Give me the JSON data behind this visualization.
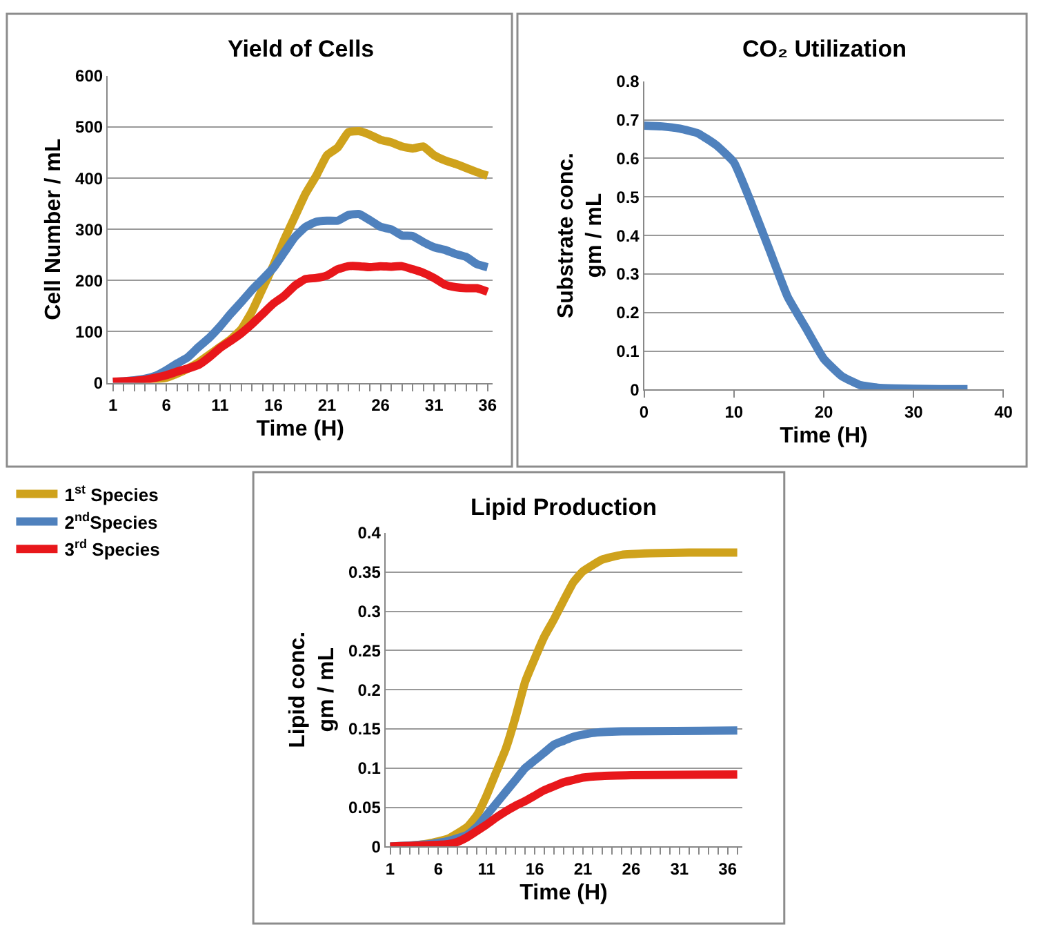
{
  "chart_data": [
    {
      "type": "line",
      "title": "Yield of Cells",
      "xlabel": "Time (H)",
      "ylabel": "Cell Number / mL",
      "x": [
        1,
        2,
        3,
        4,
        5,
        6,
        7,
        8,
        9,
        10,
        11,
        12,
        13,
        14,
        15,
        16,
        17,
        18,
        19,
        20,
        21,
        22,
        23,
        24,
        25,
        26,
        27,
        28,
        29,
        30,
        31,
        32,
        33,
        34,
        35,
        36
      ],
      "series": [
        {
          "color": "#cfa21c",
          "values": [
            null,
            null,
            4,
            5,
            7,
            10,
            18,
            28,
            40,
            55,
            70,
            85,
            105,
            140,
            185,
            230,
            280,
            325,
            370,
            405,
            445,
            460,
            490,
            492,
            485,
            475,
            470,
            462,
            458,
            462,
            445,
            435,
            428,
            420,
            412,
            405
          ]
        },
        {
          "color": "#4f81bd",
          "values": [
            2,
            3,
            5,
            8,
            14,
            25,
            38,
            50,
            70,
            88,
            110,
            135,
            158,
            182,
            203,
            225,
            255,
            285,
            305,
            315,
            317,
            317,
            328,
            330,
            318,
            305,
            300,
            288,
            287,
            275,
            265,
            260,
            252,
            246,
            232,
            226
          ]
        },
        {
          "color": "#e8171b",
          "values": [
            2,
            3,
            4,
            6,
            10,
            15,
            22,
            28,
            35,
            50,
            68,
            82,
            97,
            115,
            135,
            155,
            170,
            190,
            203,
            205,
            210,
            222,
            228,
            228,
            226,
            228,
            227,
            228,
            222,
            215,
            205,
            192,
            187,
            185,
            185,
            178
          ]
        }
      ],
      "xlim": [
        0.5,
        36.5
      ],
      "xticks": [
        1,
        {
          "value": 2,
          "label": null
        },
        {
          "value": 3,
          "label": null
        },
        {
          "value": 4,
          "label": null
        },
        {
          "value": 5,
          "label": null
        },
        6,
        {
          "value": 7,
          "label": null
        },
        {
          "value": 8,
          "label": null
        },
        {
          "value": 9,
          "label": null
        },
        {
          "value": 10,
          "label": null
        },
        11,
        {
          "value": 12,
          "label": null
        },
        {
          "value": 13,
          "label": null
        },
        {
          "value": 14,
          "label": null
        },
        {
          "value": 15,
          "label": null
        },
        16,
        {
          "value": 17,
          "label": null
        },
        {
          "value": 18,
          "label": null
        },
        {
          "value": 19,
          "label": null
        },
        {
          "value": 20,
          "label": null
        },
        21,
        {
          "value": 22,
          "label": null
        },
        {
          "value": 23,
          "label": null
        },
        {
          "value": 24,
          "label": null
        },
        {
          "value": 25,
          "label": null
        },
        26,
        {
          "value": 27,
          "label": null
        },
        {
          "value": 28,
          "label": null
        },
        {
          "value": 29,
          "label": null
        },
        {
          "value": 30,
          "label": null
        },
        31,
        {
          "value": 32,
          "label": null
        },
        {
          "value": 33,
          "label": null
        },
        {
          "value": 34,
          "label": null
        },
        {
          "value": 35,
          "label": null
        },
        36
      ],
      "ylim": [
        0,
        600
      ],
      "yticks": [
        0,
        100,
        200,
        300,
        400,
        500,
        600
      ],
      "grid": "y"
    },
    {
      "type": "line",
      "title": "CO₂ Utilization",
      "xlabel": "Time (H)",
      "ylabel": "Substrate conc.\ngm / mL",
      "x": [
        0,
        2,
        4,
        6,
        8,
        10,
        12,
        14,
        16,
        18,
        20,
        22,
        24,
        26,
        28,
        30,
        33,
        36
      ],
      "series": [
        {
          "color": "#4f81bd",
          "values": [
            0.685,
            0.683,
            0.677,
            0.665,
            0.635,
            0.59,
            0.48,
            0.36,
            0.24,
            0.16,
            0.08,
            0.035,
            0.012,
            0.005,
            0.003,
            0.002,
            0.001,
            0.001
          ]
        }
      ],
      "xlim": [
        0,
        40
      ],
      "xticks": [
        0,
        10,
        20,
        30,
        40
      ],
      "ylim": [
        0,
        0.8
      ],
      "yticks": [
        0,
        0.1,
        0.2,
        0.3,
        0.4,
        0.5,
        0.6,
        0.7,
        0.8
      ],
      "grid": "y"
    },
    {
      "type": "line",
      "title": "Lipid Production",
      "xlabel": "Time (H)",
      "ylabel": "Lipid conc.\ngm / mL",
      "series": [
        {
          "name": "1$^{st}$ Species",
          "color": "#cfa21c",
          "x": [
            1,
            3,
            5,
            7,
            9,
            10,
            11,
            12,
            13,
            14,
            15,
            16,
            17,
            18,
            19,
            20,
            21,
            23,
            25,
            28,
            32,
            37
          ],
          "values": [
            0,
            0.001,
            0.004,
            0.01,
            0.025,
            0.04,
            0.065,
            0.095,
            0.125,
            0.165,
            0.21,
            0.24,
            0.268,
            0.29,
            0.314,
            0.337,
            0.351,
            0.366,
            0.372,
            0.374,
            0.375,
            0.375
          ]
        },
        {
          "name": "2$^{nd}$Species",
          "color": "#4f81bd",
          "x": [
            1,
            5,
            7,
            9,
            10,
            11,
            12,
            13,
            14,
            15,
            16,
            17,
            18,
            19,
            20,
            22,
            25,
            37
          ],
          "values": [
            0,
            0.003,
            0.007,
            0.015,
            0.025,
            0.04,
            0.055,
            0.07,
            0.085,
            0.1,
            0.11,
            0.12,
            0.13,
            0.135,
            0.14,
            0.145,
            0.147,
            0.148
          ]
        },
        {
          "name": "3$^{rd}$ Species",
          "color": "#e8171b",
          "x": [
            1,
            7,
            8,
            9,
            10,
            11,
            12,
            13,
            14,
            15,
            16,
            17,
            18,
            19,
            20,
            21,
            23,
            26,
            37
          ],
          "values": [
            0,
            0.003,
            0.006,
            0.012,
            0.02,
            0.028,
            0.037,
            0.045,
            0.052,
            0.058,
            0.065,
            0.072,
            0.077,
            0.082,
            0.085,
            0.088,
            0.09,
            0.091,
            0.092
          ]
        }
      ],
      "xlim": [
        0.5,
        37.5
      ],
      "xticks": [
        1,
        {
          "value": 2,
          "label": null
        },
        {
          "value": 3,
          "label": null
        },
        {
          "value": 4,
          "label": null
        },
        {
          "value": 5,
          "label": null
        },
        6,
        {
          "value": 7,
          "label": null
        },
        {
          "value": 8,
          "label": null
        },
        {
          "value": 9,
          "label": null
        },
        {
          "value": 10,
          "label": null
        },
        11,
        {
          "value": 12,
          "label": null
        },
        {
          "value": 13,
          "label": null
        },
        {
          "value": 14,
          "label": null
        },
        {
          "value": 15,
          "label": null
        },
        16,
        {
          "value": 17,
          "label": null
        },
        {
          "value": 18,
          "label": null
        },
        {
          "value": 19,
          "label": null
        },
        {
          "value": 20,
          "label": null
        },
        21,
        {
          "value": 22,
          "label": null
        },
        {
          "value": 23,
          "label": null
        },
        {
          "value": 24,
          "label": null
        },
        {
          "value": 25,
          "label": null
        },
        26,
        {
          "value": 27,
          "label": null
        },
        {
          "value": 28,
          "label": null
        },
        {
          "value": 29,
          "label": null
        },
        {
          "value": 30,
          "label": null
        },
        31,
        {
          "value": 32,
          "label": null
        },
        {
          "value": 33,
          "label": null
        },
        {
          "value": 34,
          "label": null
        },
        {
          "value": 35,
          "label": null
        },
        36,
        {
          "value": 37,
          "label": null
        }
      ],
      "ylim": [
        0,
        0.4
      ],
      "yticks": [
        0,
        0.05,
        0.1,
        0.15,
        0.2,
        0.25,
        0.3,
        0.35,
        0.4
      ],
      "grid": "y",
      "legend": "left"
    }
  ]
}
